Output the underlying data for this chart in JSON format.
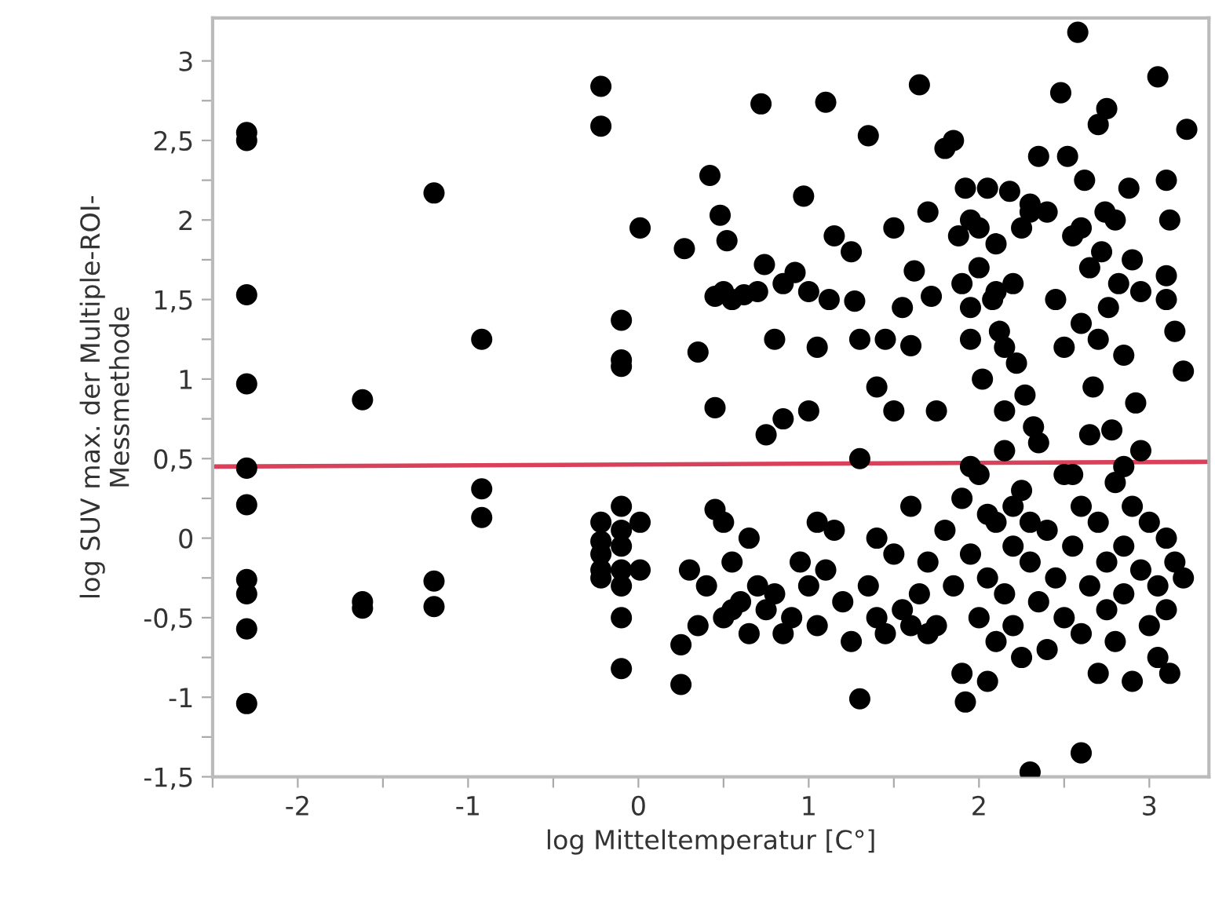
{
  "chart_data": {
    "type": "scatter",
    "xlabel": "log Mitteltemperatur [C°]",
    "ylabel": "log SUV max. der Multiple-ROI-\nMessmethode",
    "xlim": [
      -2.5,
      3.35
    ],
    "ylim": [
      -1.5,
      3.27
    ],
    "xticks": [
      {
        "value": -2.5,
        "label": null
      },
      -2,
      {
        "value": -1.5,
        "label": null
      },
      -1,
      {
        "value": -0.5,
        "label": null
      },
      0,
      {
        "value": 0.5,
        "label": null
      },
      1,
      {
        "value": 1.5,
        "label": null
      },
      2,
      {
        "value": 2.5,
        "label": null
      },
      3
    ],
    "yticks": [
      {
        "value": -1.5,
        "label": "-1,5"
      },
      {
        "value": -1.25,
        "label": null
      },
      -1,
      {
        "value": -0.75,
        "label": null
      },
      {
        "value": -0.5,
        "label": "-0,5"
      },
      {
        "value": -0.25,
        "label": null
      },
      0,
      {
        "value": 0.25,
        "label": null
      },
      {
        "value": 0.5,
        "label": "0,5"
      },
      {
        "value": 0.75,
        "label": null
      },
      1,
      {
        "value": 1.25,
        "label": null
      },
      {
        "value": 1.5,
        "label": "1,5"
      },
      {
        "value": 1.75,
        "label": null
      },
      2,
      {
        "value": 2.25,
        "label": null
      },
      {
        "value": 2.5,
        "label": "2,5"
      },
      {
        "value": 2.75,
        "label": null
      },
      3
    ],
    "grid": false,
    "legend": false,
    "marker": "circle",
    "series": [
      {
        "color": "#000000",
        "x": [
          -2.3,
          -2.3,
          -2.3,
          -2.3,
          -2.3,
          -2.3,
          -2.3,
          -2.3,
          -2.3,
          -2.3,
          -1.62,
          -1.62,
          -1.62,
          -1.2,
          -1.2,
          -1.2,
          -0.92,
          -0.92,
          -0.92,
          -0.22,
          -0.22,
          -0.22,
          -0.22,
          -0.22,
          -0.22,
          -0.22,
          -0.1,
          -0.1,
          -0.1,
          -0.1,
          -0.1,
          -0.1,
          -0.1,
          -0.1,
          -0.1,
          -0.1,
          0.01,
          0.01,
          0.01,
          0.27,
          0.35,
          0.42,
          0.45,
          0.48,
          0.5,
          0.52,
          0.55,
          0.62,
          0.7,
          0.72,
          0.74,
          0.8,
          0.85,
          0.92,
          0.97,
          1.0,
          1.05,
          1.1,
          1.12,
          1.15,
          1.25,
          1.27,
          1.3,
          1.35,
          1.45,
          1.5,
          1.55,
          1.6,
          1.62,
          1.65,
          1.7,
          1.72,
          1.75,
          1.8,
          1.85,
          1.88,
          1.9,
          1.92,
          1.95,
          1.95,
          2.0,
          2.02,
          2.05,
          2.08,
          2.1,
          2.12,
          2.15,
          2.18,
          2.2,
          2.22,
          2.25,
          2.27,
          2.3,
          2.32,
          2.35,
          2.4,
          2.45,
          2.48,
          2.5,
          2.52,
          2.55,
          2.58,
          2.6,
          2.62,
          2.65,
          2.67,
          2.7,
          2.72,
          2.74,
          2.76,
          2.78,
          2.8,
          2.82,
          2.85,
          2.88,
          2.9,
          2.92,
          2.95,
          3.05,
          3.1,
          3.12,
          3.1,
          3.1,
          3.15,
          3.2,
          3.22,
          2.75,
          2.3,
          1.4,
          1.5,
          0.75,
          0.85,
          1.0,
          0.45,
          2.0,
          1.95,
          2.1,
          2.6,
          2.7,
          2.15,
          0.25,
          0.25,
          0.3,
          0.35,
          0.4,
          0.45,
          0.5,
          0.5,
          0.55,
          0.6,
          0.65,
          0.7,
          0.75,
          0.8,
          0.85,
          0.9,
          1.0,
          1.05,
          1.05,
          1.1,
          1.15,
          1.2,
          1.25,
          1.3,
          1.3,
          1.35,
          1.4,
          1.45,
          1.5,
          1.55,
          1.6,
          1.65,
          1.7,
          1.75,
          1.8,
          1.85,
          1.9,
          1.9,
          1.92,
          1.95,
          2.0,
          2.0,
          2.05,
          2.05,
          2.1,
          2.1,
          2.15,
          2.15,
          2.2,
          2.2,
          2.25,
          2.25,
          2.3,
          2.3,
          2.35,
          2.35,
          2.4,
          2.4,
          2.45,
          2.5,
          2.5,
          2.55,
          2.6,
          2.6,
          2.6,
          2.65,
          2.7,
          2.7,
          2.75,
          2.75,
          2.8,
          2.8,
          2.85,
          2.85,
          2.9,
          2.9,
          2.95,
          3.0,
          3.0,
          3.05,
          3.05,
          3.1,
          3.1,
          3.15,
          3.2,
          3.12,
          2.95,
          2.85,
          2.55,
          2.65,
          2.3,
          2.2,
          2.05,
          1.95,
          1.7,
          1.6,
          1.4,
          0.95,
          0.65,
          0.55
        ],
        "values": [
          2.55,
          2.5,
          1.53,
          0.97,
          0.44,
          0.21,
          -0.26,
          -0.35,
          -0.57,
          -1.04,
          0.87,
          -0.4,
          -0.44,
          2.17,
          -0.27,
          -0.43,
          1.25,
          0.31,
          0.13,
          2.84,
          2.59,
          0.1,
          -0.02,
          -0.1,
          -0.2,
          -0.25,
          1.37,
          1.12,
          1.08,
          0.2,
          0.05,
          -0.05,
          -0.2,
          -0.3,
          -0.5,
          -0.82,
          1.95,
          0.1,
          -0.2,
          1.82,
          1.17,
          2.28,
          1.52,
          2.03,
          1.55,
          1.87,
          1.5,
          1.53,
          1.55,
          2.73,
          1.72,
          1.25,
          1.6,
          1.67,
          2.15,
          1.55,
          1.2,
          2.74,
          1.5,
          1.9,
          1.8,
          1.49,
          1.25,
          2.53,
          1.25,
          1.95,
          1.45,
          1.21,
          1.68,
          2.85,
          2.05,
          1.52,
          0.8,
          2.45,
          2.5,
          1.9,
          1.6,
          2.2,
          1.45,
          1.25,
          1.7,
          1.0,
          2.2,
          1.5,
          1.85,
          1.3,
          0.8,
          2.18,
          1.6,
          1.1,
          1.95,
          0.9,
          2.1,
          0.7,
          2.4,
          2.05,
          1.5,
          2.8,
          1.2,
          2.4,
          1.9,
          3.18,
          1.35,
          2.25,
          1.7,
          0.95,
          2.6,
          1.8,
          2.05,
          1.45,
          0.68,
          2.0,
          1.6,
          1.15,
          2.2,
          1.75,
          0.85,
          1.55,
          2.9,
          2.25,
          2.0,
          1.65,
          1.5,
          1.3,
          1.05,
          2.57,
          2.7,
          2.05,
          0.95,
          0.8,
          0.65,
          0.75,
          0.8,
          0.82,
          1.95,
          2.0,
          1.55,
          1.95,
          1.25,
          1.2,
          -0.67,
          -0.92,
          -0.2,
          -0.55,
          -0.3,
          0.18,
          -0.5,
          0.1,
          -0.15,
          -0.4,
          -0.6,
          -0.3,
          -0.45,
          -0.35,
          -0.6,
          -0.5,
          -0.3,
          0.1,
          -0.55,
          -0.2,
          0.05,
          -0.4,
          -0.65,
          -1.01,
          0.5,
          -0.3,
          0.0,
          -0.6,
          -0.1,
          -0.45,
          0.2,
          -0.35,
          -0.15,
          -0.55,
          0.05,
          -0.3,
          -0.85,
          0.25,
          -1.03,
          -0.1,
          -0.5,
          0.4,
          -0.25,
          -0.9,
          0.1,
          -0.65,
          -0.35,
          0.55,
          -0.05,
          -0.55,
          0.3,
          -0.75,
          -0.15,
          -1.47,
          0.6,
          -0.4,
          0.05,
          -0.7,
          -0.25,
          0.4,
          -0.5,
          -0.05,
          -1.35,
          0.2,
          -0.6,
          -0.3,
          0.1,
          -0.85,
          -0.15,
          -0.45,
          0.35,
          -0.65,
          -0.05,
          -0.35,
          0.2,
          -0.9,
          -0.2,
          0.1,
          -0.55,
          -0.75,
          -0.3,
          0.0,
          -0.45,
          -0.15,
          -0.25,
          -0.85,
          0.55,
          0.45,
          0.4,
          0.65,
          0.1,
          0.2,
          0.15,
          0.45,
          -0.6,
          -0.55,
          -0.5,
          -0.15,
          0.0,
          -0.45
        ]
      },
      {
        "type": "line",
        "color": "#d9415a",
        "marker": "none",
        "line_style": "solid",
        "x": [
          -2.5,
          3.35
        ],
        "values": [
          0.45,
          0.48
        ]
      }
    ]
  }
}
